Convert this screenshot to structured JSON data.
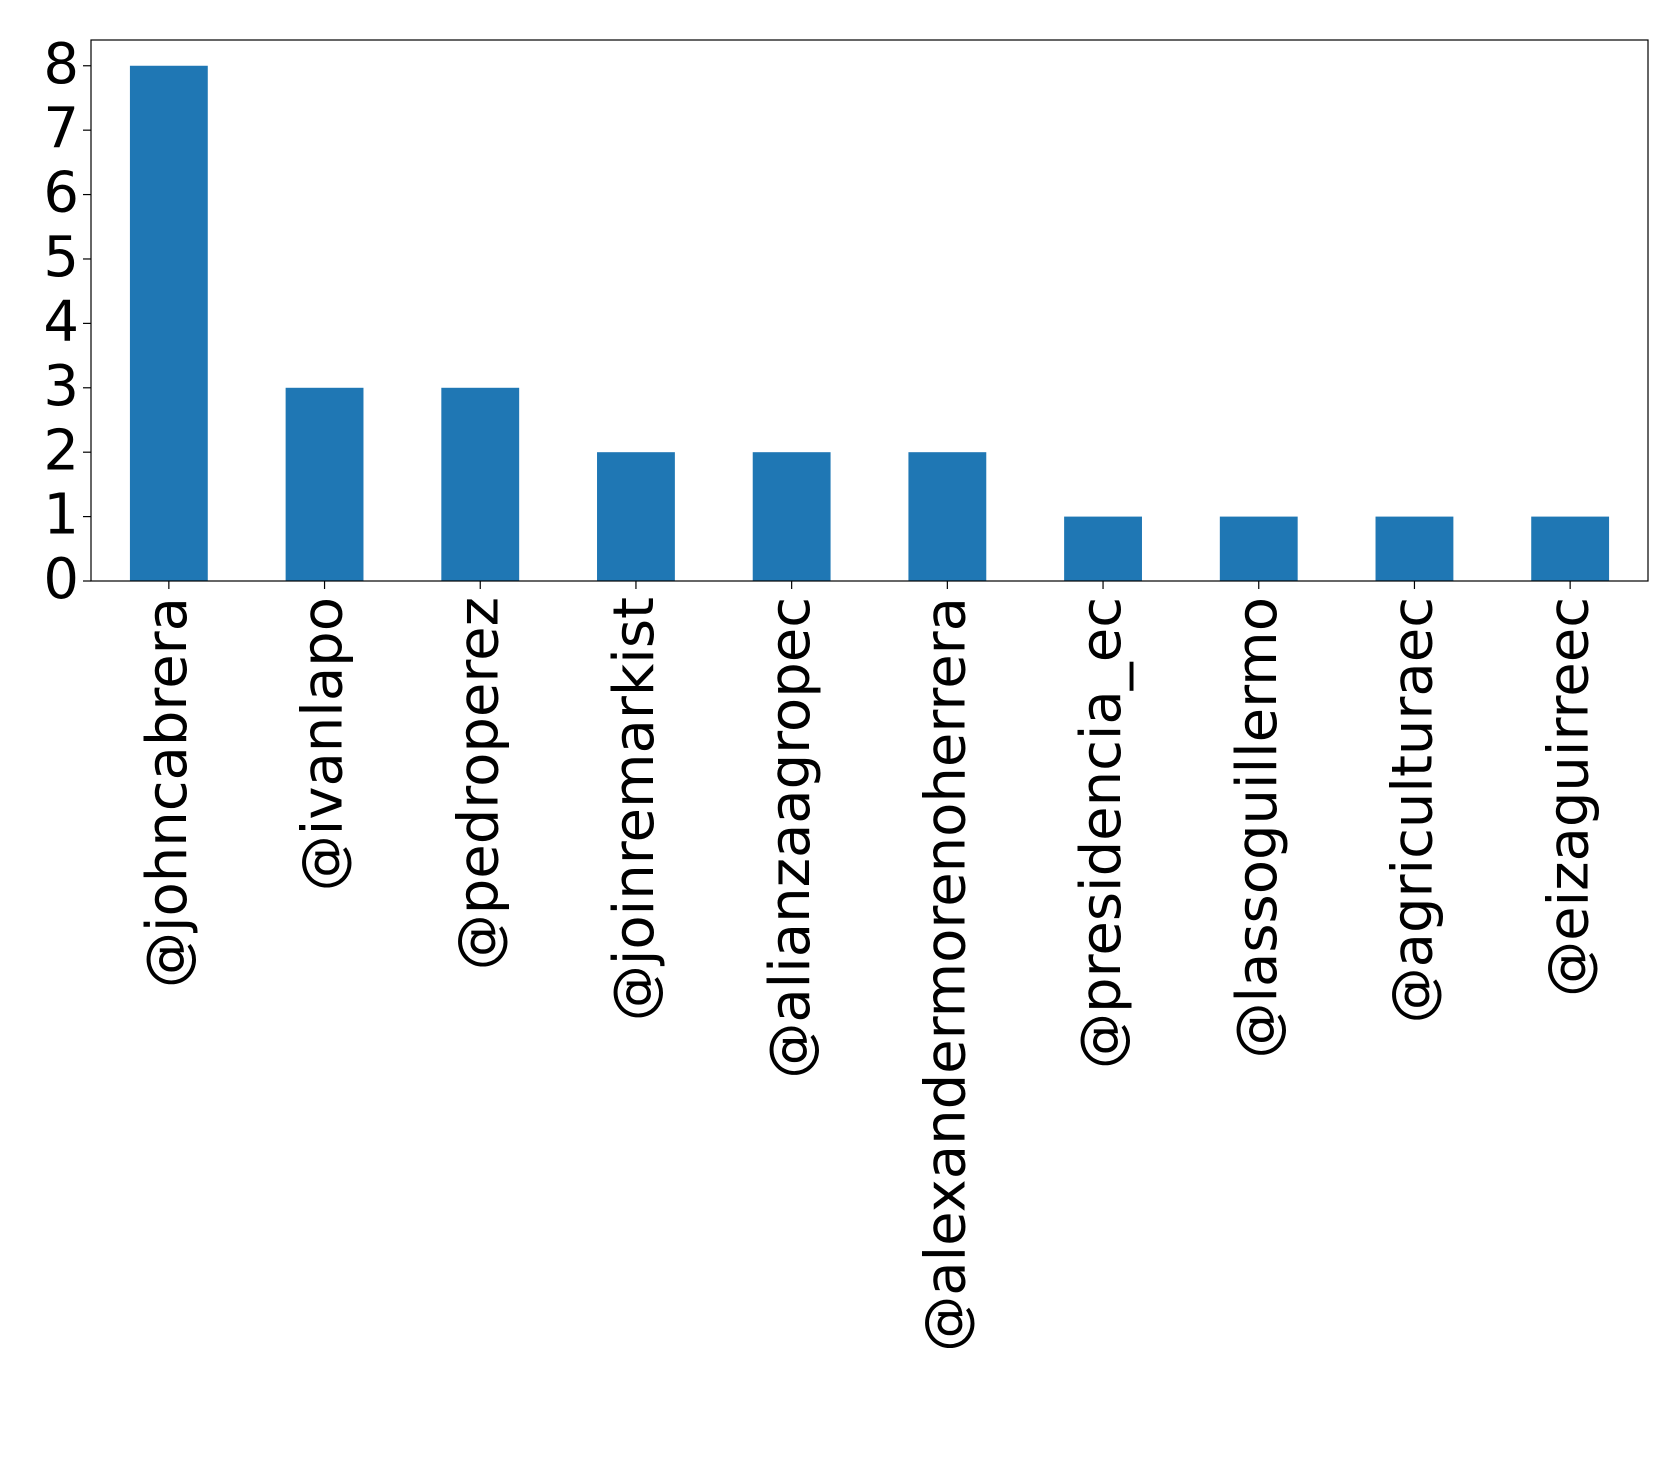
{
  "chart_data": {
    "type": "bar",
    "categories": [
      "@johncabrera",
      "@ivanlapo",
      "@pedroperez",
      "@joinremarkist",
      "@alianzaagropec",
      "@alexandermorenoherrera",
      "@presidencia_ec",
      "@lassoguillermo",
      "@agriculturaec",
      "@eizaguirreec"
    ],
    "values": [
      8,
      3,
      3,
      2,
      2,
      2,
      1,
      1,
      1,
      1
    ],
    "color": "#1f77b4",
    "ylim": [
      0,
      8.4
    ],
    "yticks": [
      0,
      1,
      2,
      3,
      4,
      5,
      6,
      7,
      8
    ],
    "grid": false
  }
}
